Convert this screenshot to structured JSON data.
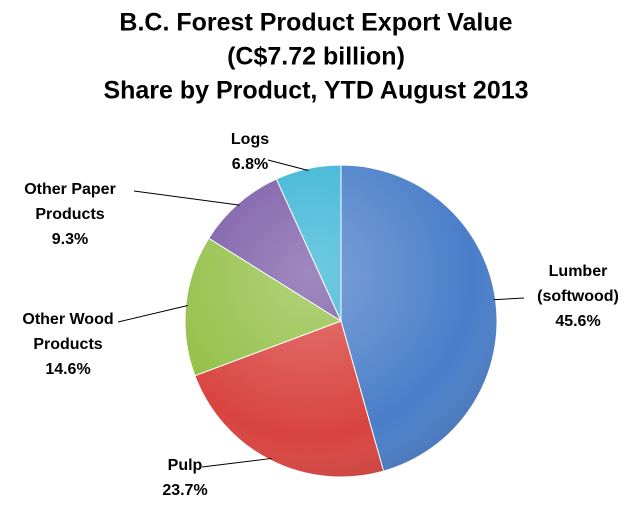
{
  "chart_data": {
    "type": "pie",
    "title": [
      "B.C. Forest Product Export Value",
      "(C$7.72 billion)",
      "Share by Product, YTD August 2013"
    ],
    "categories": [
      [
        "Lumber",
        "(softwood)"
      ],
      [
        "Pulp"
      ],
      [
        "Other Wood",
        "Products"
      ],
      [
        "Other Paper",
        "Products"
      ],
      [
        "Logs"
      ]
    ],
    "values": [
      45.6,
      23.7,
      14.6,
      9.3,
      6.8
    ],
    "value_labels": [
      "45.6%",
      "23.7%",
      "14.6%",
      "9.3%",
      "6.8%"
    ],
    "colors": [
      "#4a7ec9",
      "#d9443f",
      "#93c047",
      "#7b5ba8",
      "#3ab5d6"
    ]
  }
}
